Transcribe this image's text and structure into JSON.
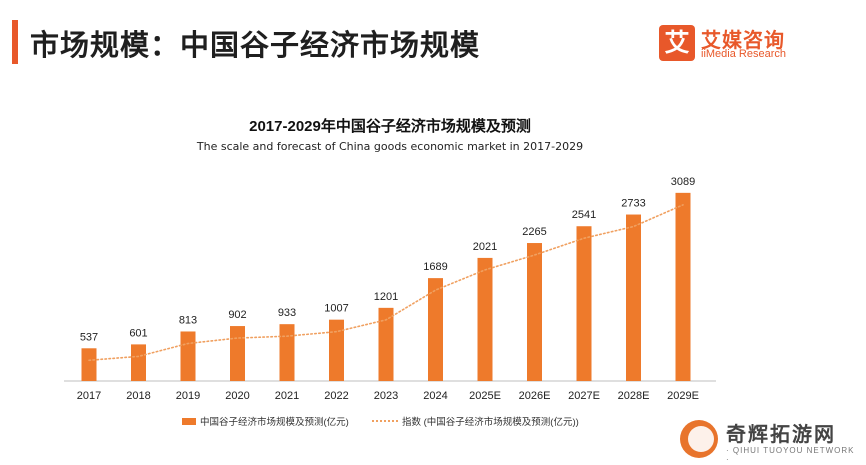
{
  "header": {
    "title": "市场规模：中国谷子经济市场规模",
    "accent_color": "#e8582a"
  },
  "logo": {
    "mark": "艾",
    "name_cn": "艾媒咨询",
    "name_en": "iiMedia Research",
    "color": "#e8582a"
  },
  "chart_data": {
    "type": "bar",
    "title": "2017-2029年中国谷子经济市场规模及预测",
    "subtitle": "The scale and forecast of China goods economic market in 2017-2029",
    "categories": [
      "2017",
      "2018",
      "2019",
      "2020",
      "2021",
      "2022",
      "2023",
      "2024",
      "2025E",
      "2026E",
      "2027E",
      "2028E",
      "2029E"
    ],
    "series": [
      {
        "name": "中国谷子经济市场规模及预测(亿元)",
        "type": "bar",
        "color": "#ee7a2b",
        "values": [
          537,
          601,
          813,
          902,
          933,
          1007,
          1201,
          1689,
          2021,
          2265,
          2541,
          2733,
          3089
        ]
      },
      {
        "name": "指数 (中国谷子经济市场规模及预测(亿元))",
        "type": "line",
        "style": "dotted",
        "color": "#f0a060",
        "values": [
          537,
          601,
          813,
          902,
          933,
          1007,
          1201,
          1689,
          2021,
          2265,
          2541,
          2733,
          3089
        ]
      }
    ],
    "ylim": [
      0,
      3300
    ],
    "grid": false,
    "legend_position": "bottom"
  },
  "watermark": {
    "name_cn": "奇辉拓游网",
    "name_en": "· QIHUI TUOYOU NETWORK ·"
  }
}
